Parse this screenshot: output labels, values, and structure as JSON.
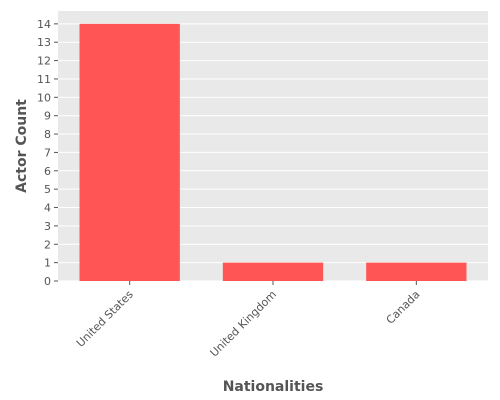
{
  "chart_data": {
    "type": "bar",
    "title": "",
    "xlabel": "Nationalities",
    "ylabel": "Actor Count",
    "categories": [
      "United States",
      "United Kingdom",
      "Canada"
    ],
    "values": [
      14,
      1,
      1
    ],
    "ylim": [
      0,
      14.7
    ],
    "yticks": [
      0,
      1,
      2,
      3,
      4,
      5,
      6,
      7,
      8,
      9,
      10,
      11,
      12,
      13,
      14
    ],
    "grid": true,
    "legend": "none",
    "colors": {
      "bar": "#ff5555",
      "background": "#e9e9e9",
      "grid": "#ffffff",
      "text": "#555555"
    }
  }
}
